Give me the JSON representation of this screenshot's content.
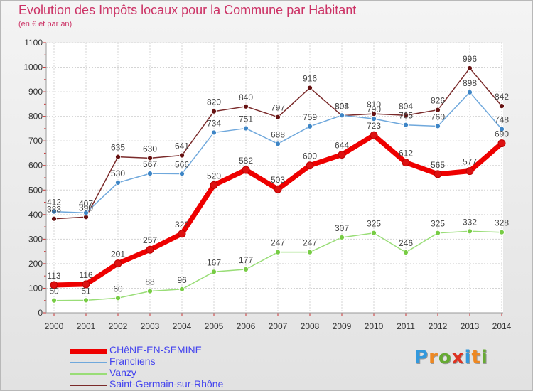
{
  "title": "Evolution des Impôts locaux pour la Commune par Habitant",
  "subtitle": "(en € et par an)",
  "brand": {
    "text": "Proxiti",
    "letters": [
      {
        "char": "P",
        "color": "#3399dd"
      },
      {
        "char": "r",
        "color": "#ee8822"
      },
      {
        "char": "o",
        "color": "#66aa33"
      },
      {
        "char": "x",
        "color": "#dd3322"
      },
      {
        "char": "i",
        "color": "#3399dd"
      },
      {
        "char": "t",
        "color": "#ee8822"
      },
      {
        "char": "i",
        "color": "#66aa33"
      }
    ]
  },
  "chart_data": {
    "type": "line",
    "title": "Evolution des Impôts locaux pour la Commune par Habitant",
    "subtitle": "(en € et par an)",
    "x": [
      "2000",
      "2001",
      "2002",
      "2003",
      "2004",
      "2005",
      "2006",
      "2007",
      "2008",
      "2009",
      "2010",
      "2011",
      "2012",
      "2013",
      "2014"
    ],
    "ylim": [
      0,
      1100
    ],
    "yticks": [
      0,
      100,
      200,
      300,
      400,
      500,
      600,
      700,
      800,
      900,
      1000,
      1100
    ],
    "grid": true,
    "legend_position": "bottom-left",
    "series": [
      {
        "name": "Saint-Germain-sur-Rhône",
        "color": "#7a2a2a",
        "marker": "#661111",
        "values": [
          383,
          390,
          635,
          630,
          641,
          820,
          840,
          797,
          916,
          803,
          810,
          804,
          826,
          996,
          842
        ],
        "labels": [
          "383",
          "390",
          "635",
          "630",
          "641",
          "820",
          "840",
          "797",
          "916",
          "803",
          "810",
          "804",
          "826",
          "996",
          "842"
        ]
      },
      {
        "name": "Francliens",
        "color": "#6fa8dc",
        "marker": "#3d85c6",
        "values": [
          412,
          407,
          530,
          567,
          566,
          734,
          751,
          688,
          759,
          804,
          790,
          765,
          760,
          898,
          748
        ],
        "labels": [
          "412",
          "407",
          "530",
          "567",
          "566",
          "734",
          "751",
          "688",
          "759",
          "804",
          "790",
          "765",
          "760",
          "898",
          "748"
        ]
      },
      {
        "name": "Vanzy",
        "color": "#99dd77",
        "marker": "#77cc44",
        "values": [
          50,
          51,
          60,
          88,
          96,
          167,
          177,
          247,
          247,
          307,
          325,
          246,
          325,
          332,
          328
        ],
        "labels": [
          "50",
          "51",
          "60",
          "88",
          "96",
          "167",
          "177",
          "247",
          "247",
          "307",
          "325",
          "246",
          "325",
          "332",
          "328"
        ]
      },
      {
        "name": "CHêNE-EN-SEMINE",
        "color": "#ee0000",
        "marker": "#dd1111",
        "values": [
          113,
          116,
          201,
          257,
          322,
          520,
          582,
          503,
          600,
          644,
          723,
          612,
          565,
          577,
          690
        ],
        "labels": [
          "113",
          "116",
          "201",
          "257",
          "322",
          "520",
          "582",
          "503",
          "600",
          "644",
          "723",
          "612",
          "565",
          "577",
          "690"
        ]
      }
    ],
    "legend": [
      {
        "name": "CHêNE-EN-SEMINE",
        "color": "#ee0000",
        "width": 7
      },
      {
        "name": "Francliens",
        "color": "#6fa8dc",
        "width": 2
      },
      {
        "name": "Vanzy",
        "color": "#99dd77",
        "width": 2
      },
      {
        "name": "Saint-Germain-sur-Rhône",
        "color": "#7a2a2a",
        "width": 2
      }
    ]
  }
}
